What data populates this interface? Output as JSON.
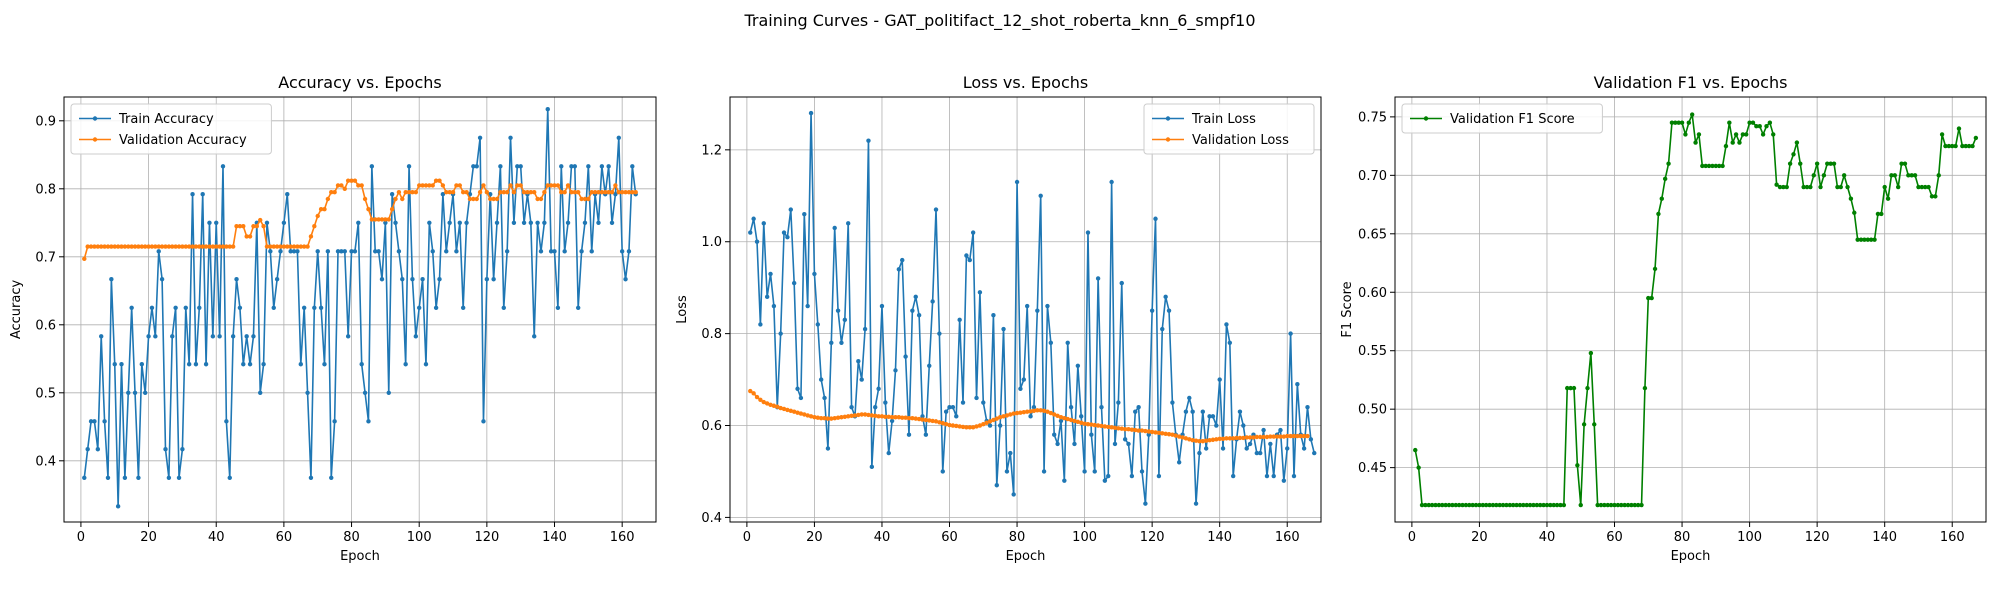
{
  "figure_title": "Training Curves - GAT_politifact_12_shot_roberta_knn_6_smpf10",
  "colors": {
    "train": "#1f77b4",
    "val": "#ff7f0e",
    "f1": "#008000",
    "grid": "#b0b0b0"
  },
  "chart_data": [
    {
      "type": "line",
      "title": "Accuracy vs. Epochs",
      "xlabel": "Epoch",
      "ylabel": "Accuracy",
      "xlim": [
        -5,
        170
      ],
      "ylim": [
        0.31,
        0.935
      ],
      "xticks": [
        0,
        20,
        40,
        60,
        80,
        100,
        120,
        140,
        160
      ],
      "yticks": [
        0.4,
        0.5,
        0.6,
        0.7,
        0.8,
        0.9
      ],
      "ytick_labels": [
        "0.4",
        "0.5",
        "0.6",
        "0.7",
        "0.8",
        "0.9"
      ],
      "legend_loc": "upper-left",
      "x_start": 1,
      "series": [
        {
          "name": "Train Accuracy",
          "color_key": "train",
          "values": [
            0.375,
            0.417,
            0.458,
            0.458,
            0.417,
            0.583,
            0.458,
            0.375,
            0.667,
            0.542,
            0.333,
            0.542,
            0.375,
            0.5,
            0.625,
            0.5,
            0.375,
            0.542,
            0.5,
            0.583,
            0.625,
            0.583,
            0.708,
            0.667,
            0.417,
            0.375,
            0.583,
            0.625,
            0.375,
            0.417,
            0.625,
            0.542,
            0.792,
            0.542,
            0.625,
            0.792,
            0.542,
            0.75,
            0.583,
            0.75,
            0.583,
            0.833,
            0.458,
            0.375,
            0.583,
            0.667,
            0.625,
            0.542,
            0.583,
            0.542,
            0.583,
            0.75,
            0.5,
            0.542,
            0.75,
            0.708,
            0.625,
            0.667,
            0.708,
            0.75,
            0.792,
            0.708,
            0.708,
            0.708,
            0.542,
            0.625,
            0.5,
            0.375,
            0.625,
            0.708,
            0.625,
            0.542,
            0.708,
            0.375,
            0.458,
            0.708,
            0.708,
            0.708,
            0.583,
            0.708,
            0.708,
            0.75,
            0.542,
            0.5,
            0.458,
            0.833,
            0.708,
            0.708,
            0.667,
            0.75,
            0.5,
            0.792,
            0.75,
            0.708,
            0.667,
            0.542,
            0.833,
            0.667,
            0.583,
            0.625,
            0.667,
            0.542,
            0.75,
            0.708,
            0.625,
            0.667,
            0.792,
            0.708,
            0.75,
            0.792,
            0.708,
            0.75,
            0.625,
            0.75,
            0.792,
            0.833,
            0.833,
            0.875,
            0.458,
            0.667,
            0.792,
            0.667,
            0.75,
            0.833,
            0.625,
            0.708,
            0.875,
            0.75,
            0.833,
            0.833,
            0.75,
            0.792,
            0.75,
            0.583,
            0.75,
            0.708,
            0.75,
            0.917,
            0.708,
            0.708,
            0.625,
            0.833,
            0.708,
            0.75,
            0.833,
            0.833,
            0.625,
            0.708,
            0.75,
            0.833,
            0.708,
            0.792,
            0.75,
            0.833,
            0.792,
            0.833,
            0.75,
            0.792,
            0.875,
            0.708,
            0.667,
            0.708,
            0.833,
            0.792
          ]
        },
        {
          "name": "Validation Accuracy",
          "color_key": "val",
          "values": [
            0.697,
            0.715,
            0.715,
            0.715,
            0.715,
            0.715,
            0.715,
            0.715,
            0.715,
            0.715,
            0.715,
            0.715,
            0.715,
            0.715,
            0.715,
            0.715,
            0.715,
            0.715,
            0.715,
            0.715,
            0.715,
            0.715,
            0.715,
            0.715,
            0.715,
            0.715,
            0.715,
            0.715,
            0.715,
            0.715,
            0.715,
            0.715,
            0.715,
            0.715,
            0.715,
            0.715,
            0.715,
            0.715,
            0.715,
            0.715,
            0.715,
            0.715,
            0.715,
            0.715,
            0.715,
            0.745,
            0.745,
            0.745,
            0.73,
            0.73,
            0.745,
            0.745,
            0.754,
            0.745,
            0.715,
            0.715,
            0.715,
            0.715,
            0.715,
            0.715,
            0.715,
            0.715,
            0.715,
            0.715,
            0.715,
            0.715,
            0.715,
            0.73,
            0.745,
            0.76,
            0.77,
            0.77,
            0.785,
            0.795,
            0.795,
            0.805,
            0.805,
            0.8,
            0.812,
            0.812,
            0.812,
            0.805,
            0.805,
            0.785,
            0.77,
            0.755,
            0.755,
            0.755,
            0.755,
            0.755,
            0.755,
            0.77,
            0.785,
            0.795,
            0.785,
            0.795,
            0.795,
            0.795,
            0.795,
            0.805,
            0.805,
            0.805,
            0.805,
            0.805,
            0.812,
            0.812,
            0.805,
            0.795,
            0.795,
            0.795,
            0.805,
            0.805,
            0.795,
            0.795,
            0.785,
            0.785,
            0.785,
            0.795,
            0.805,
            0.795,
            0.785,
            0.785,
            0.785,
            0.795,
            0.795,
            0.795,
            0.805,
            0.795,
            0.805,
            0.805,
            0.795,
            0.795,
            0.795,
            0.795,
            0.785,
            0.785,
            0.795,
            0.805,
            0.805,
            0.805,
            0.805,
            0.795,
            0.795,
            0.805,
            0.795,
            0.795,
            0.795,
            0.785,
            0.785,
            0.785,
            0.795,
            0.795,
            0.795,
            0.795,
            0.795,
            0.795,
            0.795,
            0.805,
            0.795,
            0.795,
            0.795,
            0.795,
            0.795,
            0.795
          ]
        }
      ]
    },
    {
      "type": "line",
      "title": "Loss vs. Epochs",
      "xlabel": "Epoch",
      "ylabel": "Loss",
      "xlim": [
        -5,
        170
      ],
      "ylim": [
        0.39,
        1.315
      ],
      "xticks": [
        0,
        20,
        40,
        60,
        80,
        100,
        120,
        140,
        160
      ],
      "yticks": [
        0.4,
        0.6,
        0.8,
        1.0,
        1.2
      ],
      "ytick_labels": [
        "0.4",
        "0.6",
        "0.8",
        "1.0",
        "1.2"
      ],
      "legend_loc": "upper-right",
      "x_start": 1,
      "series": [
        {
          "name": "Train Loss",
          "color_key": "train",
          "values": [
            1.02,
            1.05,
            1.0,
            0.82,
            1.04,
            0.88,
            0.93,
            0.86,
            0.64,
            0.8,
            1.02,
            1.01,
            1.07,
            0.91,
            0.68,
            0.66,
            1.06,
            0.86,
            1.28,
            0.93,
            0.82,
            0.7,
            0.66,
            0.55,
            0.78,
            1.03,
            0.85,
            0.78,
            0.83,
            1.04,
            0.64,
            0.62,
            0.74,
            0.7,
            0.81,
            1.22,
            0.51,
            0.64,
            0.68,
            0.86,
            0.65,
            0.54,
            0.61,
            0.72,
            0.94,
            0.96,
            0.75,
            0.58,
            0.85,
            0.88,
            0.84,
            0.62,
            0.58,
            0.73,
            0.87,
            1.07,
            0.8,
            0.5,
            0.63,
            0.64,
            0.64,
            0.62,
            0.83,
            0.65,
            0.97,
            0.96,
            1.02,
            0.66,
            0.89,
            0.65,
            0.61,
            0.6,
            0.84,
            0.47,
            0.6,
            0.81,
            0.5,
            0.54,
            0.45,
            1.13,
            0.68,
            0.7,
            0.86,
            0.62,
            0.64,
            0.85,
            1.1,
            0.5,
            0.86,
            0.78,
            0.58,
            0.56,
            0.61,
            0.48,
            0.78,
            0.64,
            0.56,
            0.73,
            0.62,
            0.5,
            1.02,
            0.58,
            0.5,
            0.92,
            0.64,
            0.48,
            0.49,
            1.13,
            0.56,
            0.65,
            0.91,
            0.57,
            0.56,
            0.49,
            0.63,
            0.64,
            0.5,
            0.43,
            0.58,
            0.85,
            1.05,
            0.49,
            0.81,
            0.88,
            0.85,
            0.65,
            0.58,
            0.52,
            0.58,
            0.63,
            0.66,
            0.63,
            0.43,
            0.54,
            0.63,
            0.55,
            0.62,
            0.62,
            0.6,
            0.7,
            0.55,
            0.82,
            0.78,
            0.49,
            0.57,
            0.63,
            0.6,
            0.55,
            0.56,
            0.58,
            0.54,
            0.54,
            0.59,
            0.49,
            0.56,
            0.49,
            0.58,
            0.59,
            0.48,
            0.55,
            0.8,
            0.49,
            0.69,
            0.58,
            0.55,
            0.64,
            0.57,
            0.54
          ]
        },
        {
          "name": "Validation Loss",
          "color_key": "val",
          "values": [
            0.675,
            0.67,
            0.662,
            0.656,
            0.651,
            0.648,
            0.645,
            0.643,
            0.641,
            0.638,
            0.636,
            0.634,
            0.632,
            0.63,
            0.628,
            0.626,
            0.624,
            0.622,
            0.62,
            0.618,
            0.617,
            0.616,
            0.616,
            0.615,
            0.615,
            0.616,
            0.617,
            0.618,
            0.619,
            0.62,
            0.621,
            0.622,
            0.623,
            0.624,
            0.624,
            0.623,
            0.622,
            0.621,
            0.62,
            0.62,
            0.619,
            0.619,
            0.618,
            0.618,
            0.618,
            0.617,
            0.617,
            0.616,
            0.616,
            0.615,
            0.614,
            0.613,
            0.612,
            0.611,
            0.61,
            0.609,
            0.607,
            0.605,
            0.603,
            0.601,
            0.6,
            0.599,
            0.598,
            0.597,
            0.596,
            0.596,
            0.596,
            0.598,
            0.6,
            0.603,
            0.606,
            0.609,
            0.612,
            0.615,
            0.618,
            0.62,
            0.622,
            0.624,
            0.626,
            0.627,
            0.628,
            0.629,
            0.63,
            0.631,
            0.632,
            0.633,
            0.633,
            0.632,
            0.63,
            0.627,
            0.624,
            0.621,
            0.618,
            0.616,
            0.614,
            0.612,
            0.61,
            0.608,
            0.606,
            0.604,
            0.603,
            0.602,
            0.601,
            0.6,
            0.599,
            0.598,
            0.597,
            0.596,
            0.595,
            0.594,
            0.593,
            0.592,
            0.592,
            0.591,
            0.59,
            0.589,
            0.589,
            0.588,
            0.587,
            0.586,
            0.585,
            0.584,
            0.583,
            0.582,
            0.581,
            0.58,
            0.578,
            0.576,
            0.574,
            0.572,
            0.57,
            0.568,
            0.567,
            0.566,
            0.566,
            0.567,
            0.568,
            0.569,
            0.57,
            0.571,
            0.571,
            0.572,
            0.572,
            0.572,
            0.573,
            0.573,
            0.573,
            0.574,
            0.574,
            0.574,
            0.575,
            0.575,
            0.575,
            0.575,
            0.576,
            0.576,
            0.576,
            0.576,
            0.576,
            0.577,
            0.577,
            0.577,
            0.577,
            0.577,
            0.577,
            0.577
          ]
        }
      ]
    },
    {
      "type": "line",
      "title": "Validation F1 vs. Epochs",
      "xlabel": "Epoch",
      "ylabel": "F1 Score",
      "xlim": [
        -5,
        170
      ],
      "ylim": [
        0.4035,
        0.767
      ],
      "xticks": [
        0,
        20,
        40,
        60,
        80,
        100,
        120,
        140,
        160
      ],
      "yticks": [
        0.45,
        0.5,
        0.55,
        0.6,
        0.65,
        0.7,
        0.75
      ],
      "ytick_labels": [
        "0.45",
        "0.50",
        "0.55",
        "0.60",
        "0.65",
        "0.70",
        "0.75"
      ],
      "legend_loc": "upper-left",
      "x_start": 1,
      "series": [
        {
          "name": "Validation F1 Score",
          "color_key": "f1",
          "values": [
            0.465,
            0.45,
            0.418,
            0.418,
            0.418,
            0.418,
            0.418,
            0.418,
            0.418,
            0.418,
            0.418,
            0.418,
            0.418,
            0.418,
            0.418,
            0.418,
            0.418,
            0.418,
            0.418,
            0.418,
            0.418,
            0.418,
            0.418,
            0.418,
            0.418,
            0.418,
            0.418,
            0.418,
            0.418,
            0.418,
            0.418,
            0.418,
            0.418,
            0.418,
            0.418,
            0.418,
            0.418,
            0.418,
            0.418,
            0.418,
            0.418,
            0.418,
            0.418,
            0.418,
            0.418,
            0.518,
            0.518,
            0.518,
            0.452,
            0.418,
            0.487,
            0.518,
            0.548,
            0.487,
            0.418,
            0.418,
            0.418,
            0.418,
            0.418,
            0.418,
            0.418,
            0.418,
            0.418,
            0.418,
            0.418,
            0.418,
            0.418,
            0.418,
            0.518,
            0.595,
            0.595,
            0.62,
            0.667,
            0.68,
            0.697,
            0.71,
            0.745,
            0.745,
            0.745,
            0.745,
            0.735,
            0.745,
            0.752,
            0.728,
            0.735,
            0.708,
            0.708,
            0.708,
            0.708,
            0.708,
            0.708,
            0.708,
            0.725,
            0.745,
            0.728,
            0.735,
            0.728,
            0.735,
            0.735,
            0.745,
            0.745,
            0.742,
            0.742,
            0.735,
            0.742,
            0.745,
            0.735,
            0.692,
            0.69,
            0.69,
            0.69,
            0.71,
            0.718,
            0.728,
            0.71,
            0.69,
            0.69,
            0.69,
            0.7,
            0.71,
            0.69,
            0.7,
            0.71,
            0.71,
            0.71,
            0.69,
            0.69,
            0.7,
            0.69,
            0.68,
            0.668,
            0.645,
            0.645,
            0.645,
            0.645,
            0.645,
            0.645,
            0.667,
            0.667,
            0.69,
            0.68,
            0.7,
            0.7,
            0.69,
            0.71,
            0.71,
            0.7,
            0.7,
            0.7,
            0.69,
            0.69,
            0.69,
            0.69,
            0.682,
            0.682,
            0.7,
            0.735,
            0.725,
            0.725,
            0.725,
            0.725,
            0.74,
            0.725,
            0.725,
            0.725,
            0.725,
            0.732
          ]
        }
      ]
    }
  ]
}
